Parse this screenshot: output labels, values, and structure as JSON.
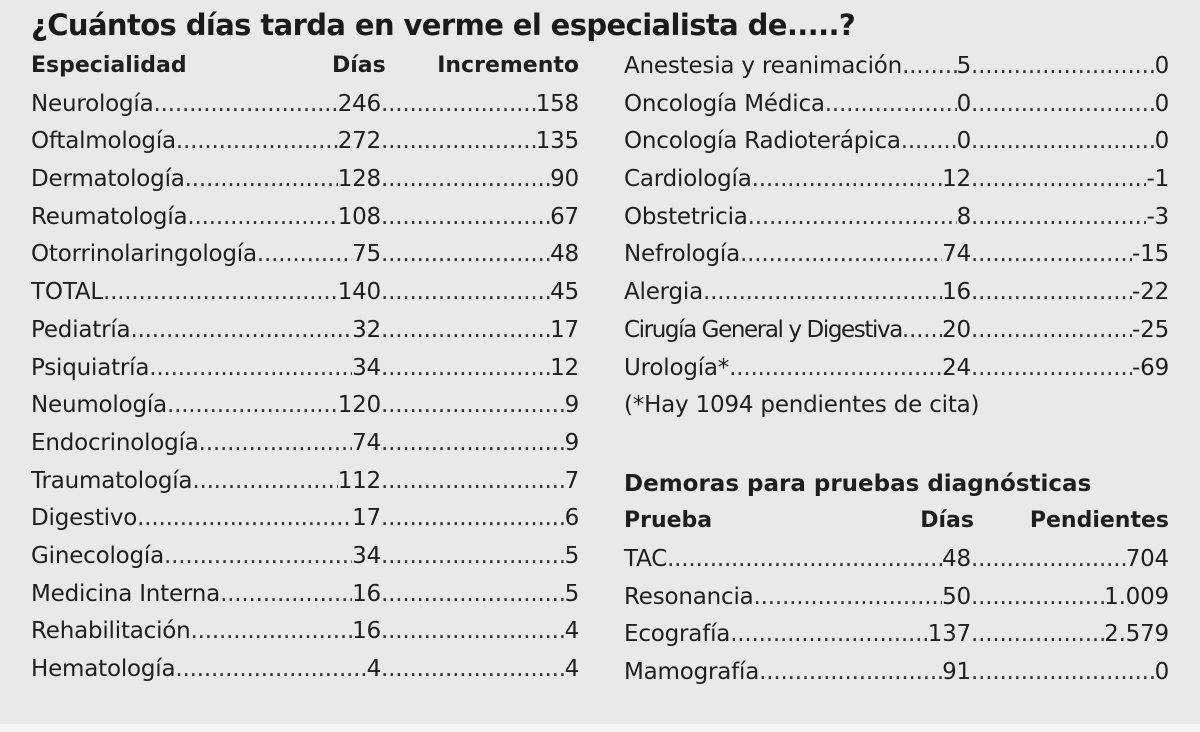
{
  "title": "¿Cuántos días tarda en verme el especialista de.....?",
  "left_table": {
    "headers": {
      "name": "Especialidad",
      "days": "Días",
      "increase": "Incremento"
    },
    "rows": [
      {
        "name": "Neurología",
        "days": "246",
        "increase": "158"
      },
      {
        "name": "Oftalmología",
        "days": "272",
        "increase": "135"
      },
      {
        "name": "Dermatología",
        "days": "128",
        "increase": "90"
      },
      {
        "name": "Reumatología",
        "days": "108",
        "increase": "67"
      },
      {
        "name": "Otorrinolaringología",
        "days": "75",
        "increase": "48"
      },
      {
        "name": "TOTAL",
        "days": "140",
        "increase": "45"
      },
      {
        "name": "Pediatría",
        "days": "32",
        "increase": "17"
      },
      {
        "name": "Psiquiatría",
        "days": "34",
        "increase": "12"
      },
      {
        "name": "Neumología",
        "days": "120",
        "increase": "9"
      },
      {
        "name": "Endocrinología",
        "days": "74",
        "increase": "9"
      },
      {
        "name": "Traumatología",
        "days": "112",
        "increase": "7"
      },
      {
        "name": "Digestivo",
        "days": "17",
        "increase": "6"
      },
      {
        "name": "Ginecología",
        "days": "34",
        "increase": "5"
      },
      {
        "name": "Medicina Interna",
        "days": "16",
        "increase": "5"
      },
      {
        "name": "Rehabilitación",
        "days": "16",
        "increase": "4"
      },
      {
        "name": "Hematología",
        "days": "4",
        "increase": "4"
      }
    ]
  },
  "right_table": {
    "rows": [
      {
        "name": "Anestesia  y reanimación",
        "days": "5",
        "increase": "0"
      },
      {
        "name": "Oncología Médica",
        "days": "0",
        "increase": "0"
      },
      {
        "name": "Oncología Radioterápica",
        "days": "0",
        "increase": "0"
      },
      {
        "name": "Cardiología",
        "days": "12",
        "increase": "-1"
      },
      {
        "name": "Obstetricia",
        "days": "8",
        "increase": "-3"
      },
      {
        "name": "Nefrología",
        "days": "74",
        "increase": "-15"
      },
      {
        "name": "Alergia",
        "days": "16",
        "increase": "-22"
      },
      {
        "name": "Cirugía General y Digestiva",
        "days": "20",
        "increase": "-25"
      },
      {
        "name": "Urología*",
        "days": "24",
        "increase": "-69"
      }
    ],
    "note": "(*Hay 1094 pendientes de cita)"
  },
  "tests": {
    "title": "Demoras para pruebas diagnósticas",
    "headers": {
      "name": "Prueba",
      "days": "Días",
      "pending": "Pendientes"
    },
    "rows": [
      {
        "name": "TAC",
        "days": "48",
        "pending": "704"
      },
      {
        "name": "Resonancia",
        "days": "50",
        "pending": "1.009"
      },
      {
        "name": "Ecografía",
        "days": "137",
        "pending": "2.579"
      },
      {
        "name": "Mamografía",
        "days": "91",
        "pending": "0"
      }
    ]
  }
}
